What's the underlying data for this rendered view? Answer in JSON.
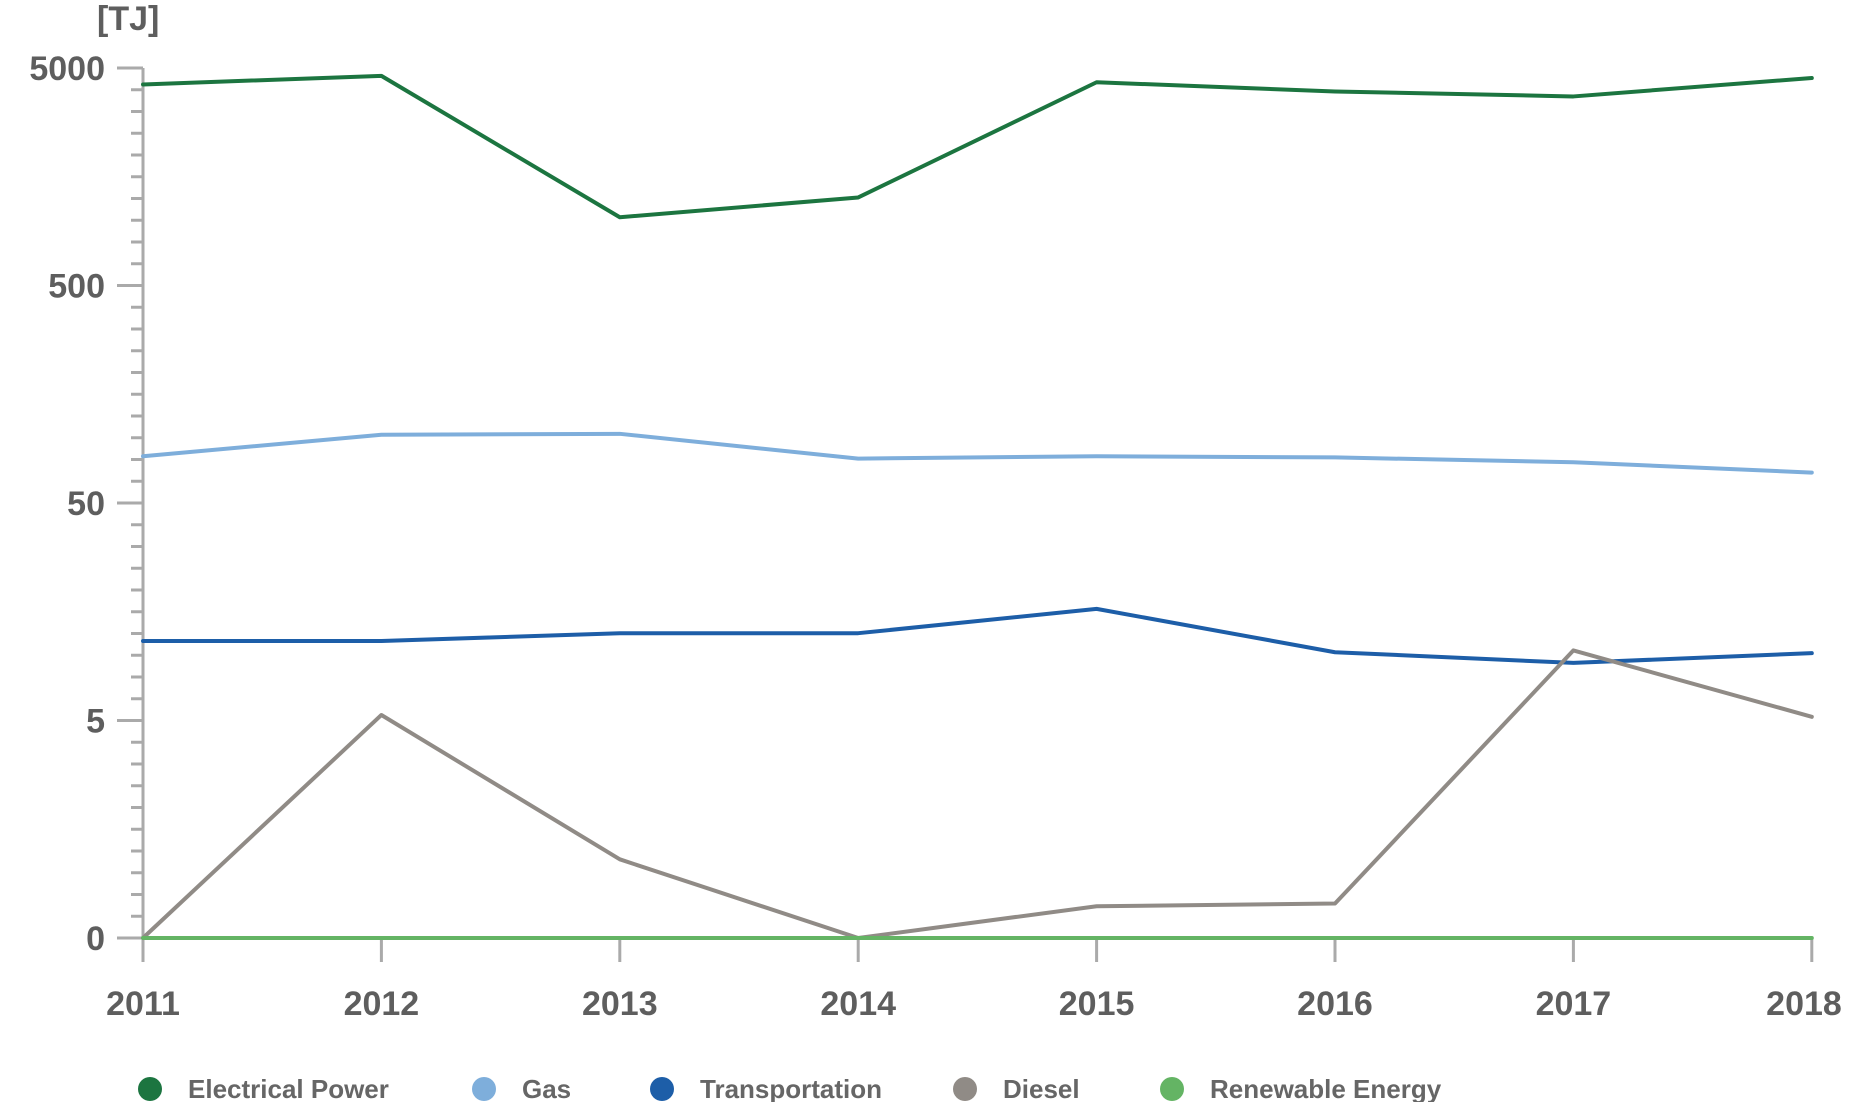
{
  "chart_data": {
    "type": "line",
    "unit_label": "[TJ]",
    "y_scale": "log",
    "y_ticks": [
      {
        "value": 0,
        "label": "0"
      },
      {
        "value": 5,
        "label": "5"
      },
      {
        "value": 50,
        "label": "50"
      },
      {
        "value": 500,
        "label": "500"
      },
      {
        "value": 5000,
        "label": "5000"
      }
    ],
    "x": [
      "2011",
      "2012",
      "2013",
      "2014",
      "2015",
      "2016",
      "2017",
      "2018"
    ],
    "series": [
      {
        "name": "Electrical Power",
        "color": "#1c7540",
        "values": [
          4200,
          4600,
          1030,
          1270,
          4300,
          3900,
          3700,
          4500
        ]
      },
      {
        "name": "Gas",
        "color": "#7eaedb",
        "values": [
          82,
          103,
          104,
          80,
          82,
          81,
          77,
          69
        ]
      },
      {
        "name": "Transportation",
        "color": "#1d5ea8",
        "values": [
          11.6,
          11.6,
          12.6,
          12.6,
          16.3,
          10.3,
          9.2,
          10.2
        ]
      },
      {
        "name": "Diesel",
        "color": "#908b86",
        "values": [
          0,
          5.3,
          1.15,
          0.11,
          0.7,
          0.72,
          10.5,
          5.2
        ]
      },
      {
        "name": "Renewable Energy",
        "color": "#64b464",
        "values": [
          0,
          0,
          0,
          0.02,
          0,
          0.02,
          0.02,
          0.02
        ]
      }
    ],
    "legend_position": "bottom",
    "grid": false
  }
}
